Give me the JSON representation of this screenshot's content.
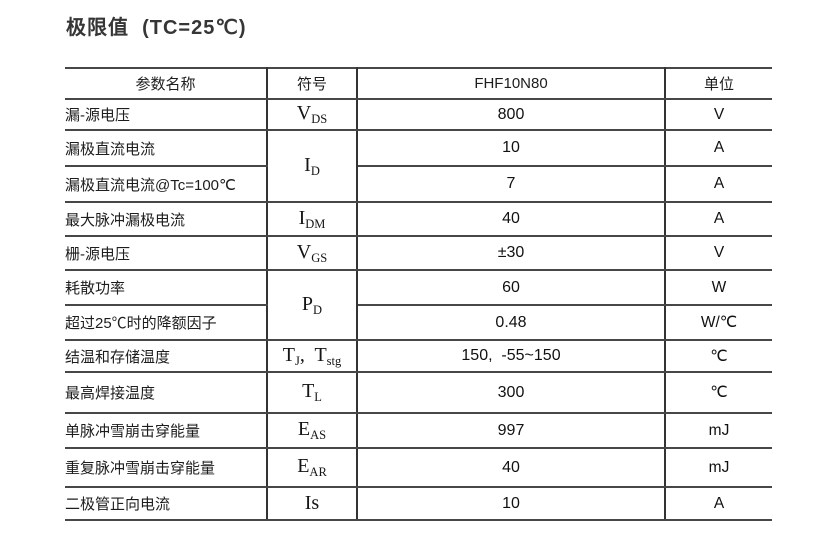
{
  "title": "极限值  (TC=25℃)",
  "table": {
    "headers": {
      "param": "参数名称",
      "symbol": "符号",
      "part": "FHF10N80",
      "unit": "单位"
    },
    "rows": [
      {
        "param": "漏-源电压",
        "symbol": [
          {
            "t": "V"
          },
          {
            "t": "DS",
            "sub": true
          }
        ],
        "value": "800",
        "unit": "V"
      },
      {
        "param": "漏极直流电流",
        "symbol": [
          {
            "t": "I"
          },
          {
            "t": "D",
            "sub": true
          }
        ],
        "symbol_rowspan": 2,
        "value": "10",
        "unit": "A"
      },
      {
        "param": "漏极直流电流@Tc=100℃",
        "value": "7",
        "unit": "A"
      },
      {
        "param": "最大脉冲漏极电流",
        "symbol": [
          {
            "t": "I"
          },
          {
            "t": "DM",
            "sub": true
          }
        ],
        "value": "40",
        "unit": "A"
      },
      {
        "param": "栅-源电压",
        "symbol": [
          {
            "t": "V"
          },
          {
            "t": "GS",
            "sub": true
          }
        ],
        "value": "±30",
        "unit": "V"
      },
      {
        "param": "耗散功率",
        "symbol": [
          {
            "t": "P"
          },
          {
            "t": "D",
            "sub": true
          }
        ],
        "symbol_rowspan": 2,
        "value": "60",
        "unit": "W"
      },
      {
        "param": "超过25℃时的降额因子",
        "value": "0.48",
        "unit": "W/℃"
      },
      {
        "param": "结温和存储温度",
        "symbol": [
          {
            "t": "T"
          },
          {
            "t": "J",
            "sub": true
          },
          {
            "t": ",  "
          },
          {
            "t": "T"
          },
          {
            "t": "stg",
            "sub": true
          }
        ],
        "value": "150,  -55~150",
        "unit": "℃"
      },
      {
        "param": "最高焊接温度",
        "symbol": [
          {
            "t": "T"
          },
          {
            "t": "L",
            "sub": true
          }
        ],
        "value": "300",
        "unit": "℃"
      },
      {
        "param": "单脉冲雪崩击穿能量",
        "symbol": [
          {
            "t": "E"
          },
          {
            "t": "AS",
            "sub": true
          }
        ],
        "value": "997",
        "unit": "mJ"
      },
      {
        "param": "重复脉冲雪崩击穿能量",
        "symbol": [
          {
            "t": "E"
          },
          {
            "t": "AR",
            "sub": true
          }
        ],
        "value": "40",
        "unit": "mJ"
      },
      {
        "param": "二极管正向电流",
        "symbol": [
          {
            "t": "Is"
          }
        ],
        "value": "10",
        "unit": "A"
      }
    ]
  }
}
